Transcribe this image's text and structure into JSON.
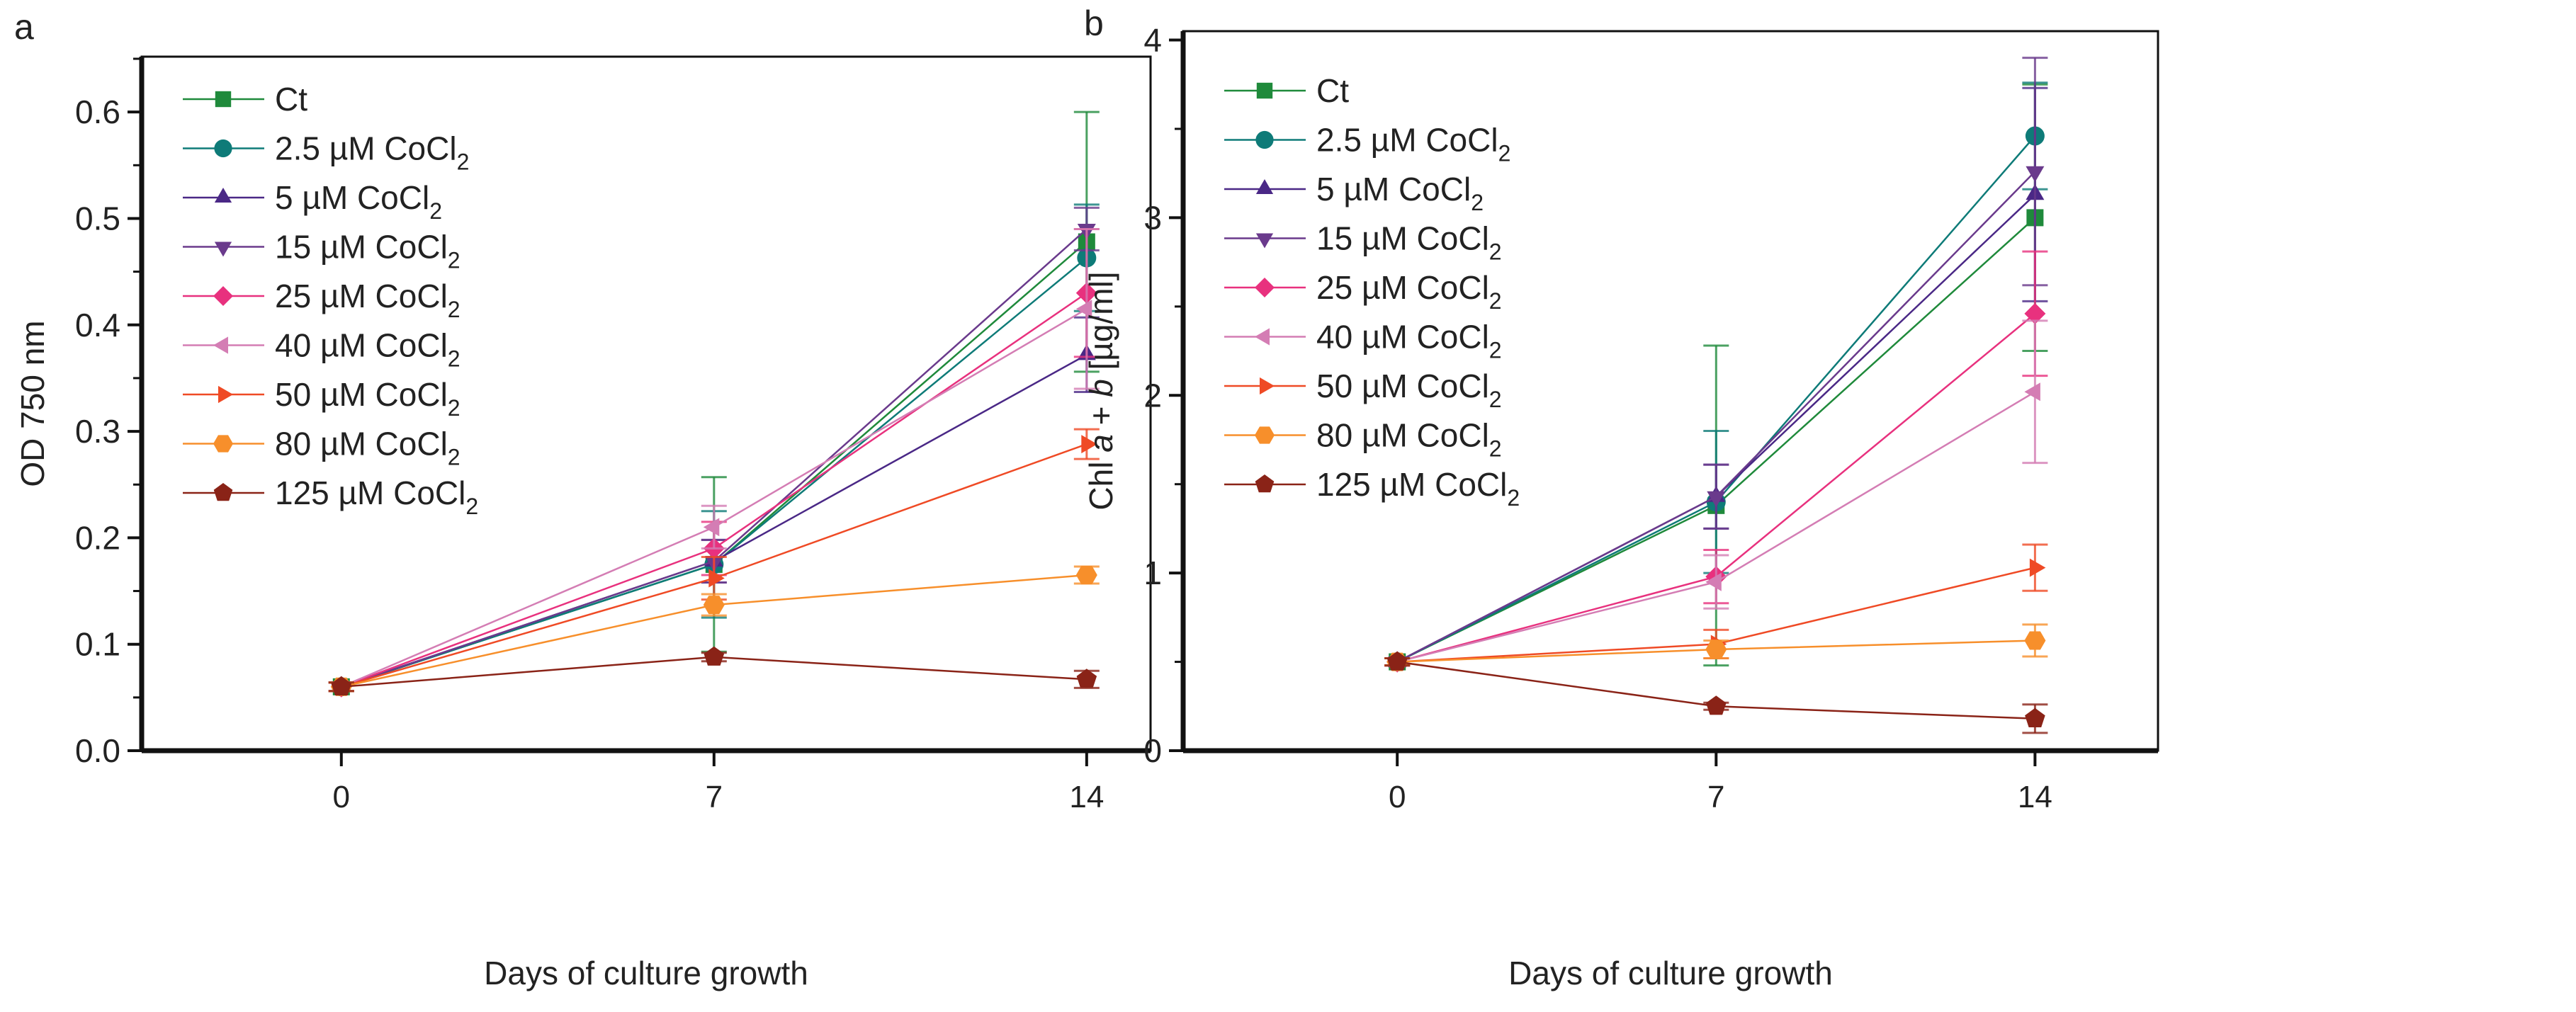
{
  "series_styles": [
    {
      "name": "Ct",
      "label": "Ct",
      "sub": "",
      "color": "#1f8a3b",
      "marker": "square"
    },
    {
      "name": "2.5 µM CoCl2",
      "label": "2.5 µM CoCl",
      "sub": "2",
      "color": "#0e7b78",
      "marker": "circle"
    },
    {
      "name": "5 µM CoCl2",
      "label": "5 µM CoCl",
      "sub": "2",
      "color": "#4a2886",
      "marker": "triangle-up"
    },
    {
      "name": "15 µM CoCl2",
      "label": "15 µM CoCl",
      "sub": "2",
      "color": "#6a3a8c",
      "marker": "triangle-down"
    },
    {
      "name": "25 µM CoCl2",
      "label": "25 µM CoCl",
      "sub": "2",
      "color": "#e8317e",
      "marker": "diamond"
    },
    {
      "name": "40 µM CoCl2",
      "label": "40 µM CoCl",
      "sub": "2",
      "color": "#d47db4",
      "marker": "triangle-left"
    },
    {
      "name": "50 µM CoCl2",
      "label": "50 µM CoCl",
      "sub": "2",
      "color": "#ef4a25",
      "marker": "triangle-right"
    },
    {
      "name": "80 µM CoCl2",
      "label": "80 µM CoCl",
      "sub": "2",
      "color": "#f78f2b",
      "marker": "hexagon"
    },
    {
      "name": "125 µM CoCl2",
      "label": "125 µM CoCl",
      "sub": "2",
      "color": "#8a2317",
      "marker": "pentagon"
    }
  ],
  "chart_data": [
    {
      "panel_label": "a",
      "type": "line",
      "xlabel": "Days of culture growth",
      "ylabel": [
        {
          "t": "OD 750 nm",
          "i": false
        }
      ],
      "x": [
        0,
        7,
        14
      ],
      "xticks": [
        0,
        7,
        14
      ],
      "xlim": [
        -3.75,
        15.2
      ],
      "ylim": [
        0,
        0.652
      ],
      "yticks": [
        "0.0",
        "0.1",
        "0.2",
        "0.3",
        "0.4",
        "0.5",
        "0.6"
      ],
      "yminor_step": 0.05,
      "legend": "top-left",
      "grid": false,
      "series": [
        {
          "name": "Ct",
          "values": [
            0.06,
            0.175,
            0.478
          ],
          "error": [
            0.004,
            0.082,
            0.122
          ]
        },
        {
          "name": "2.5 µM CoCl2",
          "values": [
            0.06,
            0.175,
            0.463
          ],
          "error": [
            0.004,
            0.05,
            0.05
          ]
        },
        {
          "name": "5 µM CoCl2",
          "values": [
            0.06,
            0.178,
            0.372
          ],
          "error": [
            0.004,
            0.02,
            0.035
          ]
        },
        {
          "name": "15 µM CoCl2",
          "values": [
            0.06,
            0.178,
            0.49
          ],
          "error": [
            0.004,
            0.02,
            0.02
          ]
        },
        {
          "name": "25 µM CoCl2",
          "values": [
            0.06,
            0.19,
            0.43
          ],
          "error": [
            0.004,
            0.025,
            0.06
          ]
        },
        {
          "name": "40 µM CoCl2",
          "values": [
            0.06,
            0.21,
            0.415
          ],
          "error": [
            0.004,
            0.02,
            0.075
          ]
        },
        {
          "name": "50 µM CoCl2",
          "values": [
            0.06,
            0.162,
            0.288
          ],
          "error": [
            0.004,
            0.02,
            0.014
          ]
        },
        {
          "name": "80 µM CoCl2",
          "values": [
            0.06,
            0.137,
            0.165
          ],
          "error": [
            0.004,
            0.01,
            0.008
          ]
        },
        {
          "name": "125 µM CoCl2",
          "values": [
            0.06,
            0.088,
            0.067
          ],
          "error": [
            0.004,
            0.004,
            0.008
          ]
        }
      ]
    },
    {
      "panel_label": "b",
      "type": "line",
      "xlabel": "Days of culture growth",
      "ylabel": [
        {
          "t": "Chl ",
          "i": false
        },
        {
          "t": "a",
          "i": true
        },
        {
          "t": " + ",
          "i": false
        },
        {
          "t": "b",
          "i": true
        },
        {
          "t": " [µg/ml]",
          "i": false
        }
      ],
      "x": [
        0,
        7,
        14
      ],
      "xticks": [
        0,
        7,
        14
      ],
      "xlim": [
        -4.7,
        16.7
      ],
      "ylim": [
        0,
        4.05
      ],
      "yticks": [
        "0",
        "1",
        "2",
        "3",
        "4"
      ],
      "yminor_step": 0.5,
      "legend": "top-left",
      "grid": false,
      "series": [
        {
          "name": "Ct",
          "values": [
            0.5,
            1.38,
            3.0
          ],
          "error": [
            0.02,
            0.9,
            0.75
          ]
        },
        {
          "name": "2.5 µM CoCl2",
          "values": [
            0.5,
            1.4,
            3.46
          ],
          "error": [
            0.02,
            0.4,
            0.3
          ]
        },
        {
          "name": "5 µM CoCl2",
          "values": [
            0.5,
            1.43,
            3.13
          ],
          "error": [
            0.02,
            0.18,
            0.6
          ]
        },
        {
          "name": "15 µM CoCl2",
          "values": [
            0.5,
            1.43,
            3.26
          ],
          "error": [
            0.02,
            0.18,
            0.64
          ]
        },
        {
          "name": "25 µM CoCl2",
          "values": [
            0.5,
            0.98,
            2.46
          ],
          "error": [
            0.02,
            0.15,
            0.35
          ]
        },
        {
          "name": "40 µM CoCl2",
          "values": [
            0.5,
            0.95,
            2.02
          ],
          "error": [
            0.02,
            0.15,
            0.4
          ]
        },
        {
          "name": "50 µM CoCl2",
          "values": [
            0.5,
            0.6,
            1.03
          ],
          "error": [
            0.02,
            0.08,
            0.13
          ]
        },
        {
          "name": "80 µM CoCl2",
          "values": [
            0.5,
            0.57,
            0.62
          ],
          "error": [
            0.02,
            0.05,
            0.09
          ]
        },
        {
          "name": "125 µM CoCl2",
          "values": [
            0.5,
            0.25,
            0.18
          ],
          "error": [
            0.02,
            0.02,
            0.08
          ]
        }
      ]
    }
  ]
}
